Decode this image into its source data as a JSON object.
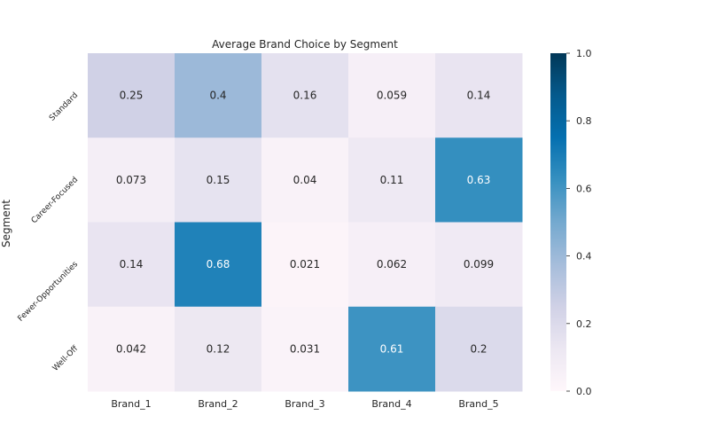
{
  "chart_data": {
    "type": "heatmap",
    "title": "Average Brand Choice by Segment",
    "xlabel": "",
    "ylabel": "Segment",
    "x_categories": [
      "Brand_1",
      "Brand_2",
      "Brand_3",
      "Brand_4",
      "Brand_5"
    ],
    "y_categories": [
      "Standard",
      "Career-Focused",
      "Fewer-Opportunities",
      "Well-Off"
    ],
    "values": [
      [
        0.25,
        0.4,
        0.16,
        0.059,
        0.14
      ],
      [
        0.073,
        0.15,
        0.04,
        0.11,
        0.63
      ],
      [
        0.14,
        0.68,
        0.021,
        0.062,
        0.099
      ],
      [
        0.042,
        0.12,
        0.031,
        0.61,
        0.2
      ]
    ],
    "annotations": [
      [
        "0.25",
        "0.4",
        "0.16",
        "0.059",
        "0.14"
      ],
      [
        "0.073",
        "0.15",
        "0.04",
        "0.11",
        "0.63"
      ],
      [
        "0.14",
        "0.68",
        "0.021",
        "0.062",
        "0.099"
      ],
      [
        "0.042",
        "0.12",
        "0.031",
        "0.61",
        "0.2"
      ]
    ],
    "colorbar": {
      "range": [
        0,
        1
      ],
      "ticks": [
        0.0,
        0.2,
        0.4,
        0.6,
        0.8,
        1.0
      ],
      "tick_labels": [
        "0.0",
        "0.2",
        "0.4",
        "0.6",
        "0.8",
        "1.0"
      ],
      "colormap": "PuBu",
      "colors": [
        "#fff7fb",
        "#ece7f2",
        "#d0d1e6",
        "#a6bddb",
        "#74a9cf",
        "#3690c0",
        "#0570b0",
        "#045a8d",
        "#023858"
      ]
    },
    "grid": false
  }
}
